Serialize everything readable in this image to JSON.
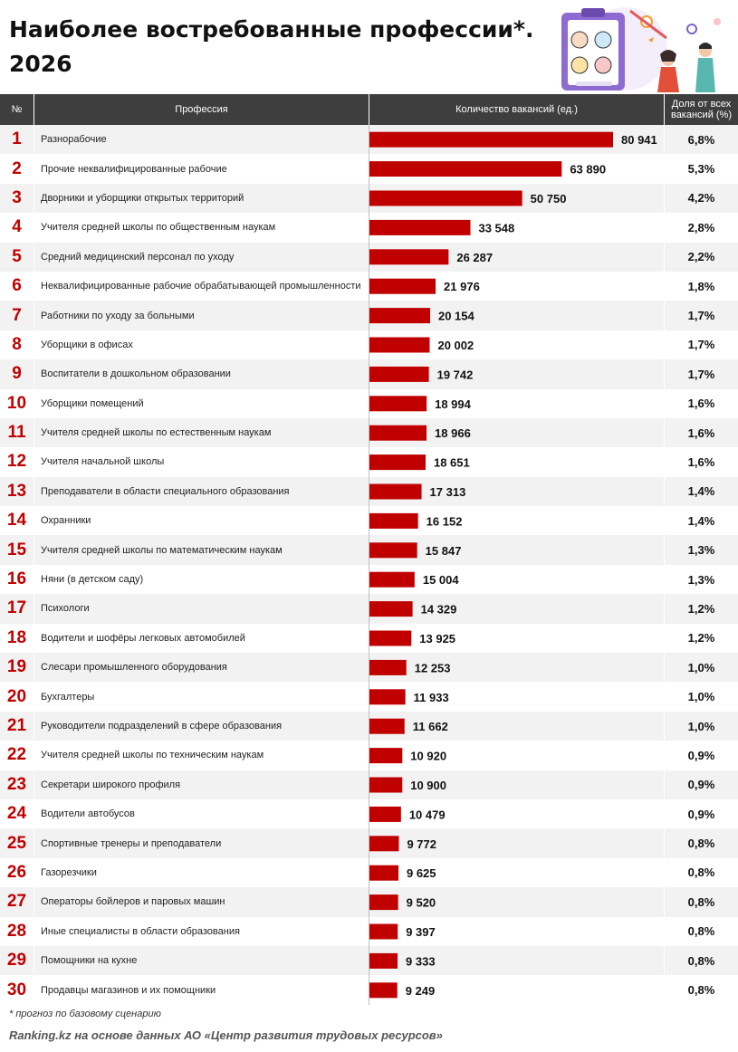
{
  "page": {
    "title_line1": "Наиболее востребованные профессии*.",
    "title_line2": "2026",
    "footnote": "* прогноз по базовому сценарию",
    "source": "Ranking.kz на основе данных АО «Центр развития трудовых ресурсов»"
  },
  "table": {
    "headers": {
      "number": "№",
      "profession": "Профессия",
      "vacancies": "Количество вакансий (ед.)",
      "share_line1": "Доля от всех",
      "share_line2": "вакансий (%)"
    }
  },
  "colors": {
    "bar": "#c00000",
    "header_bg": "#3e3e3e",
    "rank": "#c00000",
    "row_alt": "#f2f2f2"
  },
  "chart_data": {
    "type": "bar",
    "orientation": "horizontal",
    "categories": [
      "Разнорабочие",
      "Прочие неквалифицированные рабочие",
      "Дворники и уборщики открытых территорий",
      "Учителя средней школы по общественным наукам",
      "Средний медицинский персонал по уходу",
      "Неквалифицированные рабочие обрабатывающей промышленности",
      "Работники по уходу за больными",
      "Уборщики в офисах",
      "Воспитатели в дошкольном образовании",
      "Уборщики помещений",
      "Учителя средней школы по естественным наукам",
      "Учителя начальной школы",
      "Преподаватели в области специального образования",
      "Охранники",
      "Учителя средней школы по математическим наукам",
      "Няни (в детском саду)",
      "Психологи",
      "Водители и шофёры легковых автомобилей",
      "Слесари промышленного оборудования",
      "Бухгалтеры",
      "Руководители подразделений в сфере образования",
      "Учителя средней школы по техническим наукам",
      "Секретари широкого профиля",
      "Водители автобусов",
      "Спортивные тренеры и преподаватели",
      "Газорезчики",
      "Операторы бойлеров и паровых машин",
      "Иные специалисты в области образования",
      "Помощники на кухне",
      "Продавцы магазинов и их помощники"
    ],
    "ranks": [
      "1",
      "2",
      "3",
      "4",
      "5",
      "6",
      "7",
      "8",
      "9",
      "10",
      "11",
      "12",
      "13",
      "14",
      "15",
      "16",
      "17",
      "18",
      "19",
      "20",
      "21",
      "22",
      "23",
      "24",
      "25",
      "26",
      "27",
      "28",
      "29",
      "30"
    ],
    "values": [
      80941,
      63890,
      50750,
      33548,
      26287,
      21976,
      20154,
      20002,
      19742,
      18994,
      18966,
      18651,
      17313,
      16152,
      15847,
      15004,
      14329,
      13925,
      12253,
      11933,
      11662,
      10920,
      10900,
      10479,
      9772,
      9625,
      9520,
      9397,
      9333,
      9249
    ],
    "value_labels": [
      "80 941",
      "63 890",
      "50 750",
      "33 548",
      "26 287",
      "21 976",
      "20 154",
      "20 002",
      "19 742",
      "18 994",
      "18 966",
      "18 651",
      "17 313",
      "16 152",
      "15 847",
      "15 004",
      "14 329",
      "13 925",
      "12 253",
      "11 933",
      "11 662",
      "10 920",
      "10 900",
      "10 479",
      "9 772",
      "9 625",
      "9 520",
      "9 397",
      "9 333",
      "9 249"
    ],
    "shares": [
      "6,8%",
      "5,3%",
      "4,2%",
      "2,8%",
      "2,2%",
      "1,8%",
      "1,7%",
      "1,7%",
      "1,7%",
      "1,6%",
      "1,6%",
      "1,6%",
      "1,4%",
      "1,4%",
      "1,3%",
      "1,3%",
      "1,2%",
      "1,2%",
      "1,0%",
      "1,0%",
      "1,0%",
      "0,9%",
      "0,9%",
      "0,9%",
      "0,8%",
      "0,8%",
      "0,8%",
      "0,8%",
      "0,8%",
      "0,8%"
    ]
  }
}
